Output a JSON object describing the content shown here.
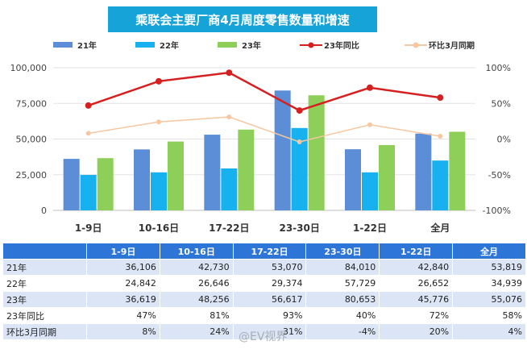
{
  "chart_data": {
    "type": "bar",
    "title": "乘联会主要厂商4月周度零售数量和增速",
    "categories": [
      "1-9日",
      "10-16日",
      "17-22日",
      "23-30日",
      "1-22日",
      "全月"
    ],
    "series": [
      {
        "name": "21年",
        "type": "bar",
        "axis": "left",
        "color": "#5b8ed6",
        "values": [
          36106,
          42730,
          53070,
          84010,
          42840,
          53819
        ]
      },
      {
        "name": "22年",
        "type": "bar",
        "axis": "left",
        "color": "#17b1ef",
        "values": [
          24842,
          26646,
          29374,
          57729,
          26652,
          34939
        ]
      },
      {
        "name": "23年",
        "type": "bar",
        "axis": "left",
        "color": "#8ecf5a",
        "values": [
          36619,
          48256,
          56617,
          80653,
          45776,
          55076
        ]
      },
      {
        "name": "23年同比",
        "type": "line",
        "axis": "right",
        "color": "#d62020",
        "values": [
          47,
          81,
          93,
          40,
          72,
          58
        ]
      },
      {
        "name": "环比3月同期",
        "type": "line",
        "axis": "right",
        "color": "#f6c7a0",
        "values": [
          8,
          24,
          31,
          -4,
          20,
          4
        ]
      }
    ],
    "left_axis": {
      "ticks": [
        "100,000",
        "75,000",
        "50,000",
        "25,000",
        "0"
      ],
      "ylim": [
        0,
        100000
      ]
    },
    "right_axis": {
      "ticks": [
        "100%",
        "50%",
        "0%",
        "-50%",
        "-100%"
      ],
      "ylim": [
        -100,
        100
      ]
    },
    "legend_position": "top"
  },
  "table": {
    "headers": [
      "",
      "1-9日",
      "10-16日",
      "17-22日",
      "23-30日",
      "1-22日",
      "全月"
    ],
    "rows": [
      {
        "label": "21年",
        "cells": [
          "36,106",
          "42,730",
          "53,070",
          "84,010",
          "42,840",
          "53,819"
        ]
      },
      {
        "label": "22年",
        "cells": [
          "24,842",
          "26,646",
          "29,374",
          "57,729",
          "26,652",
          "34,939"
        ]
      },
      {
        "label": "23年",
        "cells": [
          "36,619",
          "48,256",
          "56,617",
          "80,653",
          "45,776",
          "55,076"
        ]
      },
      {
        "label": "23年同比",
        "cells": [
          "47%",
          "81%",
          "93%",
          "40%",
          "72%",
          "58%"
        ]
      },
      {
        "label": "环比3月同期",
        "cells": [
          "8%",
          "24%",
          "31%",
          "-4%",
          "20%",
          "4%"
        ]
      }
    ]
  },
  "watermark": "@EV视界"
}
